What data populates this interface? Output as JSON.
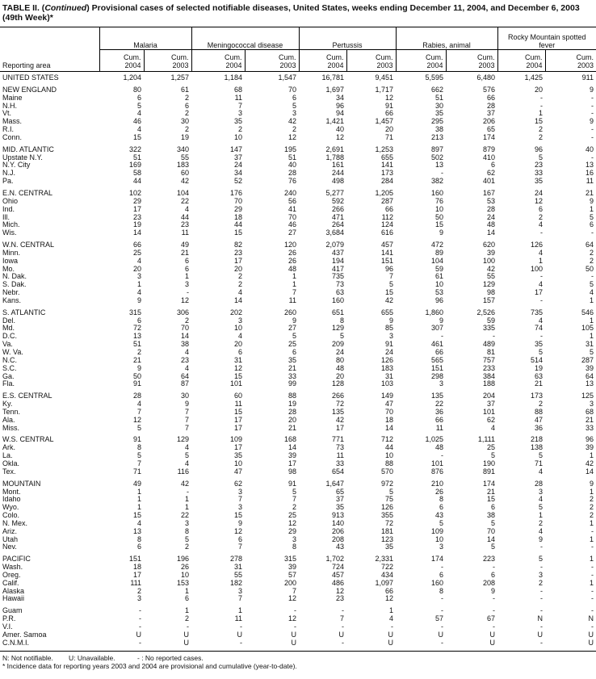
{
  "title": {
    "prefix": "TABLE II. (",
    "continued": "Continued",
    "text": ") Provisional cases of selected notifiable diseases, United States, weeks ending December 11, 2004, and December 6, 2003 (49th Week)*"
  },
  "header": {
    "reporting_area": "Reporting area",
    "groups": [
      "Malaria",
      "Meningococcal disease",
      "Pertussis",
      "Rabies, animal",
      "Rocky Mountain spotted fever"
    ],
    "cum": "Cum.",
    "years": [
      "2004",
      "2003"
    ]
  },
  "sections": [
    [
      [
        "UNITED STATES",
        "1,204",
        "1,257",
        "1,184",
        "1,547",
        "16,781",
        "9,451",
        "5,595",
        "6,480",
        "1,425",
        "911"
      ]
    ],
    [
      [
        "NEW ENGLAND",
        "80",
        "61",
        "68",
        "70",
        "1,697",
        "1,717",
        "662",
        "576",
        "20",
        "9"
      ],
      [
        "Maine",
        "6",
        "2",
        "11",
        "6",
        "34",
        "12",
        "51",
        "66",
        "-",
        "-"
      ],
      [
        "N.H.",
        "5",
        "6",
        "7",
        "5",
        "96",
        "91",
        "30",
        "28",
        "-",
        "-"
      ],
      [
        "Vt.",
        "4",
        "2",
        "3",
        "3",
        "94",
        "66",
        "35",
        "37",
        "1",
        "-"
      ],
      [
        "Mass.",
        "46",
        "30",
        "35",
        "42",
        "1,421",
        "1,457",
        "295",
        "206",
        "15",
        "9"
      ],
      [
        "R.I.",
        "4",
        "2",
        "2",
        "2",
        "40",
        "20",
        "38",
        "65",
        "2",
        "-"
      ],
      [
        "Conn.",
        "15",
        "19",
        "10",
        "12",
        "12",
        "71",
        "213",
        "174",
        "2",
        "-"
      ]
    ],
    [
      [
        "MID. ATLANTIC",
        "322",
        "340",
        "147",
        "195",
        "2,691",
        "1,253",
        "897",
        "879",
        "96",
        "40"
      ],
      [
        "Upstate N.Y.",
        "51",
        "55",
        "37",
        "51",
        "1,788",
        "655",
        "502",
        "410",
        "5",
        "-"
      ],
      [
        "N.Y. City",
        "169",
        "183",
        "24",
        "40",
        "161",
        "141",
        "13",
        "6",
        "23",
        "13"
      ],
      [
        "N.J.",
        "58",
        "60",
        "34",
        "28",
        "244",
        "173",
        "-",
        "62",
        "33",
        "16"
      ],
      [
        "Pa.",
        "44",
        "42",
        "52",
        "76",
        "498",
        "284",
        "382",
        "401",
        "35",
        "11"
      ]
    ],
    [
      [
        "E.N. CENTRAL",
        "102",
        "104",
        "176",
        "240",
        "5,277",
        "1,205",
        "160",
        "167",
        "24",
        "21"
      ],
      [
        "Ohio",
        "29",
        "22",
        "70",
        "56",
        "592",
        "287",
        "76",
        "53",
        "12",
        "9"
      ],
      [
        "Ind.",
        "17",
        "4",
        "29",
        "41",
        "266",
        "66",
        "10",
        "28",
        "6",
        "1"
      ],
      [
        "Ill.",
        "23",
        "44",
        "18",
        "70",
        "471",
        "112",
        "50",
        "24",
        "2",
        "5"
      ],
      [
        "Mich.",
        "19",
        "23",
        "44",
        "46",
        "264",
        "124",
        "15",
        "48",
        "4",
        "6"
      ],
      [
        "Wis.",
        "14",
        "11",
        "15",
        "27",
        "3,684",
        "616",
        "9",
        "14",
        "-",
        "-"
      ]
    ],
    [
      [
        "W.N. CENTRAL",
        "66",
        "49",
        "82",
        "120",
        "2,079",
        "457",
        "472",
        "620",
        "126",
        "64"
      ],
      [
        "Minn.",
        "25",
        "21",
        "23",
        "26",
        "437",
        "141",
        "89",
        "39",
        "4",
        "2"
      ],
      [
        "Iowa",
        "4",
        "6",
        "17",
        "26",
        "194",
        "151",
        "104",
        "100",
        "1",
        "2"
      ],
      [
        "Mo.",
        "20",
        "6",
        "20",
        "48",
        "417",
        "96",
        "59",
        "42",
        "100",
        "50"
      ],
      [
        "N. Dak.",
        "3",
        "1",
        "2",
        "1",
        "735",
        "7",
        "61",
        "55",
        "-",
        "-"
      ],
      [
        "S. Dak.",
        "1",
        "3",
        "2",
        "1",
        "73",
        "5",
        "10",
        "129",
        "4",
        "5"
      ],
      [
        "Nebr.",
        "4",
        "-",
        "4",
        "7",
        "63",
        "15",
        "53",
        "98",
        "17",
        "4"
      ],
      [
        "Kans.",
        "9",
        "12",
        "14",
        "11",
        "160",
        "42",
        "96",
        "157",
        "-",
        "1"
      ]
    ],
    [
      [
        "S. ATLANTIC",
        "315",
        "306",
        "202",
        "260",
        "651",
        "655",
        "1,860",
        "2,526",
        "735",
        "546"
      ],
      [
        "Del.",
        "6",
        "2",
        "3",
        "9",
        "8",
        "9",
        "9",
        "59",
        "4",
        "1"
      ],
      [
        "Md.",
        "72",
        "70",
        "10",
        "27",
        "129",
        "85",
        "307",
        "335",
        "74",
        "105"
      ],
      [
        "D.C.",
        "13",
        "14",
        "4",
        "5",
        "5",
        "3",
        "-",
        "-",
        "-",
        "1"
      ],
      [
        "Va.",
        "51",
        "38",
        "20",
        "25",
        "209",
        "91",
        "461",
        "489",
        "35",
        "31"
      ],
      [
        "W. Va.",
        "2",
        "4",
        "6",
        "6",
        "24",
        "24",
        "66",
        "81",
        "5",
        "5"
      ],
      [
        "N.C.",
        "21",
        "23",
        "31",
        "35",
        "80",
        "126",
        "565",
        "757",
        "514",
        "287"
      ],
      [
        "S.C.",
        "9",
        "4",
        "12",
        "21",
        "48",
        "183",
        "151",
        "233",
        "19",
        "39"
      ],
      [
        "Ga.",
        "50",
        "64",
        "15",
        "33",
        "20",
        "31",
        "298",
        "384",
        "63",
        "64"
      ],
      [
        "Fla.",
        "91",
        "87",
        "101",
        "99",
        "128",
        "103",
        "3",
        "188",
        "21",
        "13"
      ]
    ],
    [
      [
        "E.S. CENTRAL",
        "28",
        "30",
        "60",
        "88",
        "266",
        "149",
        "135",
        "204",
        "173",
        "125"
      ],
      [
        "Ky.",
        "4",
        "9",
        "11",
        "19",
        "72",
        "47",
        "22",
        "37",
        "2",
        "3"
      ],
      [
        "Tenn.",
        "7",
        "7",
        "15",
        "28",
        "135",
        "70",
        "36",
        "101",
        "88",
        "68"
      ],
      [
        "Ala.",
        "12",
        "7",
        "17",
        "20",
        "42",
        "18",
        "66",
        "62",
        "47",
        "21"
      ],
      [
        "Miss.",
        "5",
        "7",
        "17",
        "21",
        "17",
        "14",
        "11",
        "4",
        "36",
        "33"
      ]
    ],
    [
      [
        "W.S. CENTRAL",
        "91",
        "129",
        "109",
        "168",
        "771",
        "712",
        "1,025",
        "1,111",
        "218",
        "96"
      ],
      [
        "Ark.",
        "8",
        "4",
        "17",
        "14",
        "73",
        "44",
        "48",
        "25",
        "138",
        "39"
      ],
      [
        "La.",
        "5",
        "5",
        "35",
        "39",
        "11",
        "10",
        "-",
        "5",
        "5",
        "1"
      ],
      [
        "Okla.",
        "7",
        "4",
        "10",
        "17",
        "33",
        "88",
        "101",
        "190",
        "71",
        "42"
      ],
      [
        "Tex.",
        "71",
        "116",
        "47",
        "98",
        "654",
        "570",
        "876",
        "891",
        "4",
        "14"
      ]
    ],
    [
      [
        "MOUNTAIN",
        "49",
        "42",
        "62",
        "91",
        "1,647",
        "972",
        "210",
        "174",
        "28",
        "9"
      ],
      [
        "Mont.",
        "1",
        "-",
        "3",
        "5",
        "65",
        "5",
        "26",
        "21",
        "3",
        "1"
      ],
      [
        "Idaho",
        "1",
        "1",
        "7",
        "7",
        "37",
        "75",
        "8",
        "15",
        "4",
        "2"
      ],
      [
        "Wyo.",
        "1",
        "1",
        "3",
        "2",
        "35",
        "126",
        "6",
        "6",
        "5",
        "2"
      ],
      [
        "Colo.",
        "15",
        "22",
        "15",
        "25",
        "913",
        "355",
        "43",
        "38",
        "1",
        "2"
      ],
      [
        "N. Mex.",
        "4",
        "3",
        "9",
        "12",
        "140",
        "72",
        "5",
        "5",
        "2",
        "1"
      ],
      [
        "Ariz.",
        "13",
        "8",
        "12",
        "29",
        "206",
        "181",
        "109",
        "70",
        "4",
        "-"
      ],
      [
        "Utah",
        "8",
        "5",
        "6",
        "3",
        "208",
        "123",
        "10",
        "14",
        "9",
        "1"
      ],
      [
        "Nev.",
        "6",
        "2",
        "7",
        "8",
        "43",
        "35",
        "3",
        "5",
        "-",
        "-"
      ]
    ],
    [
      [
        "PACIFIC",
        "151",
        "196",
        "278",
        "315",
        "1,702",
        "2,331",
        "174",
        "223",
        "5",
        "1"
      ],
      [
        "Wash.",
        "18",
        "26",
        "31",
        "39",
        "724",
        "722",
        "-",
        "-",
        "-",
        "-"
      ],
      [
        "Oreg.",
        "17",
        "10",
        "55",
        "57",
        "457",
        "434",
        "6",
        "6",
        "3",
        "-"
      ],
      [
        "Calif.",
        "111",
        "153",
        "182",
        "200",
        "486",
        "1,097",
        "160",
        "208",
        "2",
        "1"
      ],
      [
        "Alaska",
        "2",
        "1",
        "3",
        "7",
        "12",
        "66",
        "8",
        "9",
        "-",
        "-"
      ],
      [
        "Hawaii",
        "3",
        "6",
        "7",
        "12",
        "23",
        "12",
        "-",
        "-",
        "-",
        "-"
      ]
    ],
    [
      [
        "Guam",
        "-",
        "1",
        "1",
        "-",
        "-",
        "1",
        "-",
        "-",
        "-",
        "-"
      ],
      [
        "P.R.",
        "-",
        "2",
        "11",
        "12",
        "7",
        "4",
        "57",
        "67",
        "N",
        "N"
      ],
      [
        "V.I.",
        "-",
        "-",
        "-",
        "-",
        "-",
        "-",
        "-",
        "-",
        "-",
        "-"
      ],
      [
        "Amer. Samoa",
        "U",
        "U",
        "U",
        "U",
        "U",
        "U",
        "U",
        "U",
        "U",
        "U"
      ],
      [
        "C.N.M.I.",
        "-",
        "U",
        "-",
        "U",
        "-",
        "U",
        "-",
        "U",
        "-",
        "U"
      ]
    ]
  ],
  "footnotes": {
    "n": "N: Not notifiable.",
    "u": "U: Unavailable.",
    "dash": "- : No reported cases.",
    "star": "* Incidence data for reporting years 2003 and 2004 are provisional and cumulative (year-to-date)."
  }
}
